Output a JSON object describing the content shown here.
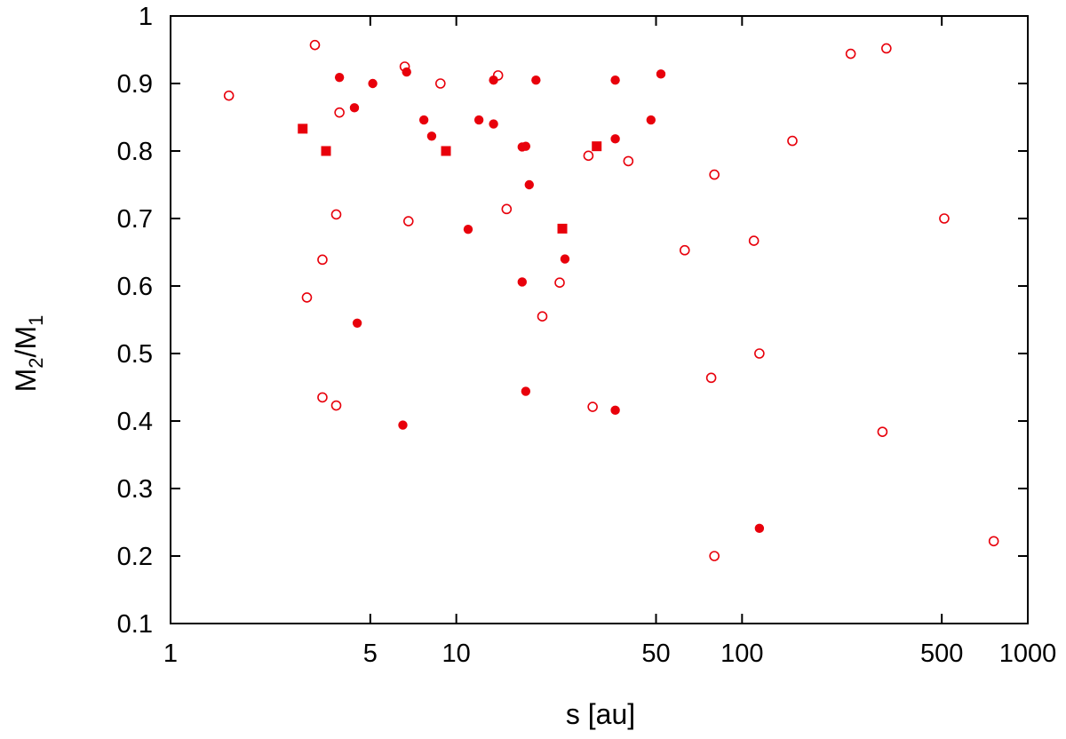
{
  "chart_data": {
    "type": "scatter",
    "title": "",
    "xlabel": "s [au]",
    "ylabel": {
      "base1": "M",
      "sub1": "2",
      "sep": "/M",
      "sub2": "1"
    },
    "x_scale": "log",
    "xlim": [
      1,
      1000
    ],
    "ylim": [
      0.1,
      1
    ],
    "x_ticks": [
      {
        "value": 1,
        "label": "1"
      },
      {
        "value": 5,
        "label": "5"
      },
      {
        "value": 10,
        "label": "10"
      },
      {
        "value": 50,
        "label": "50"
      },
      {
        "value": 100,
        "label": "100"
      },
      {
        "value": 500,
        "label": "500"
      },
      {
        "value": 1000,
        "label": "1000"
      }
    ],
    "y_ticks": [
      {
        "value": 0.1,
        "label": "0.1"
      },
      {
        "value": 0.2,
        "label": "0.2"
      },
      {
        "value": 0.3,
        "label": "0.3"
      },
      {
        "value": 0.4,
        "label": "0.4"
      },
      {
        "value": 0.5,
        "label": "0.5"
      },
      {
        "value": 0.6,
        "label": "0.6"
      },
      {
        "value": 0.7,
        "label": "0.7"
      },
      {
        "value": 0.8,
        "label": "0.8"
      },
      {
        "value": 0.9,
        "label": "0.9"
      },
      {
        "value": 1,
        "label": "1"
      }
    ],
    "grid": false,
    "legend": "none",
    "color": "#e8000b",
    "series": [
      {
        "marker": "open-circle",
        "points": [
          [
            1.6,
            0.882
          ],
          [
            3.2,
            0.957
          ],
          [
            6.6,
            0.925
          ],
          [
            14,
            0.912
          ],
          [
            8.8,
            0.9
          ],
          [
            3.9,
            0.857
          ],
          [
            29,
            0.793
          ],
          [
            40,
            0.785
          ],
          [
            15,
            0.714
          ],
          [
            3.8,
            0.706
          ],
          [
            6.8,
            0.696
          ],
          [
            3.4,
            0.639
          ],
          [
            3.0,
            0.583
          ],
          [
            23,
            0.605
          ],
          [
            20,
            0.555
          ],
          [
            3.4,
            0.435
          ],
          [
            3.8,
            0.423
          ],
          [
            30,
            0.421
          ],
          [
            80,
            0.765
          ],
          [
            240,
            0.944
          ],
          [
            320,
            0.952
          ],
          [
            150,
            0.815
          ],
          [
            510,
            0.7
          ],
          [
            63,
            0.653
          ],
          [
            110,
            0.667
          ],
          [
            115,
            0.5
          ],
          [
            78,
            0.464
          ],
          [
            310,
            0.384
          ],
          [
            80,
            0.2
          ],
          [
            760,
            0.222
          ]
        ]
      },
      {
        "marker": "filled-circle",
        "points": [
          [
            3.9,
            0.909
          ],
          [
            5.1,
            0.9
          ],
          [
            6.7,
            0.917
          ],
          [
            4.4,
            0.864
          ],
          [
            7.7,
            0.846
          ],
          [
            8.2,
            0.822
          ],
          [
            12,
            0.846
          ],
          [
            13.5,
            0.84
          ],
          [
            13.5,
            0.905
          ],
          [
            19,
            0.905
          ],
          [
            17,
            0.806
          ],
          [
            17.5,
            0.807
          ],
          [
            18,
            0.75
          ],
          [
            11,
            0.684
          ],
          [
            17,
            0.606
          ],
          [
            24,
            0.64
          ],
          [
            4.5,
            0.545
          ],
          [
            17.5,
            0.444
          ],
          [
            6.5,
            0.394
          ],
          [
            36,
            0.905
          ],
          [
            52,
            0.914
          ],
          [
            36,
            0.818
          ],
          [
            48,
            0.846
          ],
          [
            36,
            0.416
          ],
          [
            115,
            0.241
          ]
        ]
      },
      {
        "marker": "filled-square",
        "points": [
          [
            2.9,
            0.833
          ],
          [
            3.5,
            0.8
          ],
          [
            9.2,
            0.8
          ],
          [
            31,
            0.807
          ],
          [
            23.5,
            0.685
          ]
        ]
      }
    ]
  }
}
